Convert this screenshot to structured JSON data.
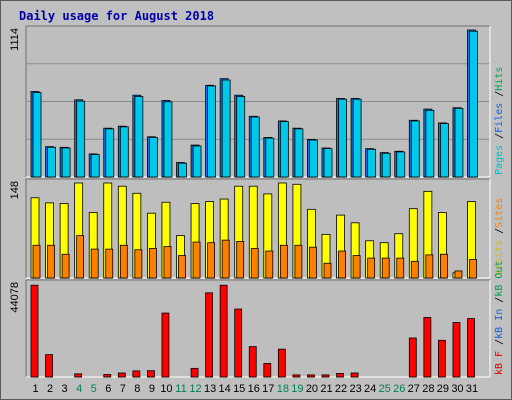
{
  "title": "Daily usage for August 2018",
  "colors": {
    "background": "#c0c0c0",
    "panel": "#bebebe",
    "title": "#0000aa",
    "hits": "#00c8e8",
    "files": "#0080ff",
    "pages": "#00e0ff",
    "visits": "#ffff00",
    "sites": "#ff8000",
    "kb_in": "#e00000",
    "kb_out": "#ff0000",
    "label_hits": "#00a050",
    "label_files": "#1060e0",
    "label_pages": "#00c0d0",
    "label_visits": "#d0c000",
    "label_sites": "#ff8000",
    "label_kbf": "#e00000",
    "label_kbin": "#1060e0",
    "label_kbout": "#00a050",
    "weekend_tick": "#00805a"
  },
  "chart_data": [
    {
      "type": "bar",
      "panel": "hits",
      "max_label": "1114",
      "ylim": [
        0,
        1114
      ],
      "legend": [
        "Pages",
        "Files",
        "Hits"
      ],
      "legend_seps": [
        "/",
        "/"
      ],
      "categories": [
        "1",
        "2",
        "3",
        "4",
        "5",
        "6",
        "7",
        "8",
        "9",
        "10",
        "11",
        "12",
        "13",
        "14",
        "15",
        "16",
        "17",
        "18",
        "19",
        "20",
        "21",
        "22",
        "23",
        "24",
        "25",
        "26",
        "27",
        "28",
        "29",
        "30",
        "31"
      ],
      "weekend_days": [
        "4",
        "5",
        "11",
        "12",
        "18",
        "19",
        "25",
        "26"
      ],
      "series": [
        {
          "name": "Hits",
          "values": [
            648,
            230,
            225,
            585,
            175,
            370,
            385,
            620,
            305,
            580,
            110,
            242,
            695,
            745,
            620,
            460,
            300,
            425,
            370,
            285,
            220,
            595,
            595,
            215,
            185,
            195,
            430,
            515,
            410,
            525,
            1114
          ]
        },
        {
          "name": "Files",
          "values": [
            640,
            225,
            220,
            575,
            170,
            365,
            380,
            610,
            300,
            570,
            105,
            235,
            690,
            735,
            610,
            455,
            295,
            420,
            365,
            280,
            215,
            590,
            590,
            210,
            180,
            190,
            425,
            505,
            405,
            520,
            1105
          ]
        }
      ]
    },
    {
      "type": "bar",
      "panel": "visits",
      "max_label": "148",
      "ylim": [
        0,
        148
      ],
      "legend": [
        "Visits",
        "Sites"
      ],
      "legend_seps": [
        "/"
      ],
      "categories": [
        "1",
        "2",
        "3",
        "4",
        "5",
        "6",
        "7",
        "8",
        "9",
        "10",
        "11",
        "12",
        "13",
        "14",
        "15",
        "16",
        "17",
        "18",
        "19",
        "20",
        "21",
        "22",
        "23",
        "24",
        "25",
        "26",
        "27",
        "28",
        "29",
        "30",
        "31"
      ],
      "series": [
        {
          "name": "Visits",
          "values": [
            125,
            117,
            116,
            148,
            102,
            148,
            143,
            132,
            101,
            118,
            66,
            116,
            119,
            123,
            143,
            143,
            131,
            148,
            146,
            107,
            68,
            98,
            86,
            58,
            55,
            69,
            108,
            135,
            102,
            8,
            119
          ]
        },
        {
          "name": "Sites",
          "values": [
            51,
            51,
            37,
            66,
            45,
            45,
            51,
            44,
            46,
            49,
            35,
            56,
            55,
            59,
            57,
            46,
            42,
            51,
            51,
            48,
            23,
            42,
            35,
            31,
            31,
            31,
            26,
            36,
            37,
            11,
            29
          ]
        }
      ]
    },
    {
      "type": "bar",
      "panel": "kbytes",
      "max_label": "44078",
      "ylim": [
        0,
        44078
      ],
      "legend": [
        "kB F",
        "kB In",
        "kB Out"
      ],
      "legend_seps": [
        "/",
        "/"
      ],
      "categories": [
        "1",
        "2",
        "3",
        "4",
        "5",
        "6",
        "7",
        "8",
        "9",
        "10",
        "11",
        "12",
        "13",
        "14",
        "15",
        "16",
        "17",
        "18",
        "19",
        "20",
        "21",
        "22",
        "23",
        "24",
        "25",
        "26",
        "27",
        "28",
        "29",
        "30",
        "31"
      ],
      "series": [
        {
          "name": "kB F",
          "values": [
            43500,
            10600,
            0,
            1500,
            0,
            1200,
            1900,
            2900,
            3000,
            30300,
            0,
            4100,
            39900,
            43500,
            32200,
            14400,
            6400,
            13200,
            1000,
            1000,
            1000,
            1700,
            1900,
            0,
            0,
            0,
            18500,
            28200,
            17400,
            25800,
            27700
          ]
        }
      ]
    }
  ]
}
